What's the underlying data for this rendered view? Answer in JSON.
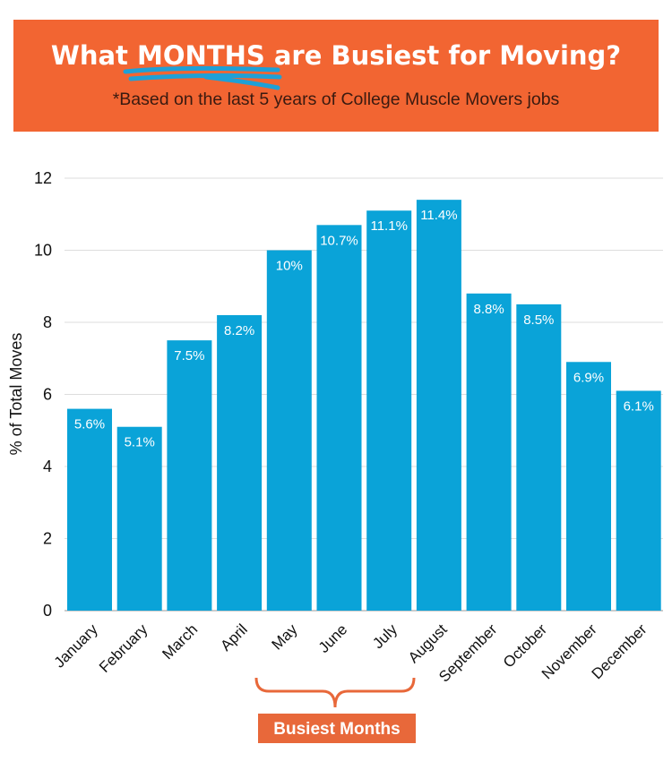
{
  "header": {
    "title_pre": "What ",
    "title_highlight": "MONTHS",
    "title_post": " are Busiest for Moving?",
    "subtitle": "*Based on the last 5 years of College Muscle Movers jobs"
  },
  "annotation": {
    "label": "Busiest Months",
    "spans": [
      "May",
      "August"
    ]
  },
  "colors": {
    "header_bg": "#f26532",
    "bar": "#0aa3d8",
    "underline": "#1fa0d6",
    "annotation": "#e8683a"
  },
  "chart_data": {
    "type": "bar",
    "title": "What MONTHS are Busiest for Moving?",
    "subtitle": "*Based on the last 5 years of College Muscle Movers jobs",
    "xlabel": "",
    "ylabel": "% of Total Moves",
    "ylim": [
      0,
      12
    ],
    "yticks": [
      0,
      2,
      4,
      6,
      8,
      10,
      12
    ],
    "grid": true,
    "categories": [
      "January",
      "February",
      "March",
      "April",
      "May",
      "June",
      "July",
      "August",
      "September",
      "October",
      "November",
      "December"
    ],
    "values": [
      5.6,
      5.1,
      7.5,
      8.2,
      10,
      10.7,
      11.1,
      11.4,
      8.8,
      8.5,
      6.9,
      6.1
    ],
    "data_labels": [
      "5.6%",
      "5.1%",
      "7.5%",
      "8.2%",
      "10%",
      "10.7%",
      "11.1%",
      "11.4%",
      "8.8%",
      "8.5%",
      "6.9%",
      "6.1%"
    ]
  }
}
